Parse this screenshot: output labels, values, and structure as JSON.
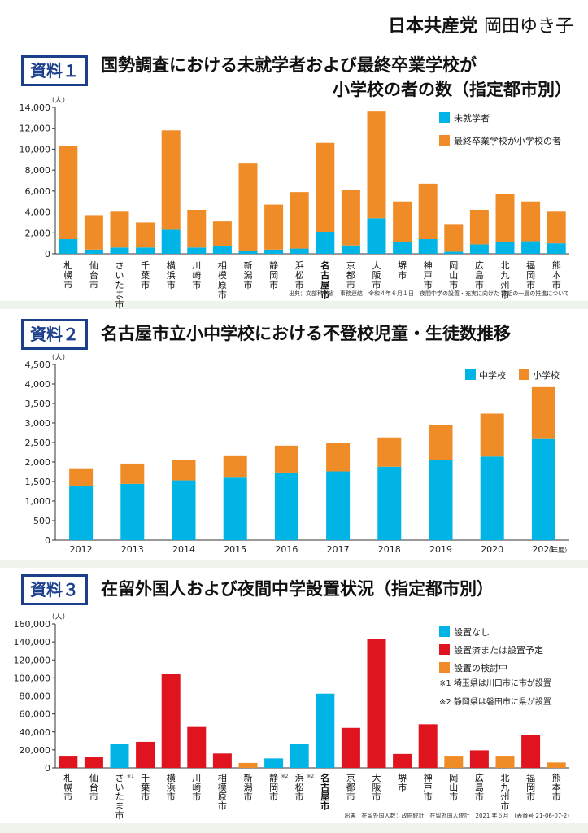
{
  "header": {
    "party": "日本共産党",
    "name": "岡田ゆき子"
  },
  "chart_data": [
    {
      "type": "bar",
      "badge": "資料１",
      "title_lines": [
        "国勢調査における未就学者および最終卒業学校が",
        "小学校の者の数（指定都市別）"
      ],
      "ylabel": "（人）",
      "ylim": [
        0,
        14000
      ],
      "yticks": [
        "0",
        "2,000",
        "4,000",
        "6,000",
        "8,000",
        "10,000",
        "12,000",
        "14,000"
      ],
      "categories": [
        "札幌市",
        "仙台市",
        "さいたま市",
        "千葉市",
        "横浜市",
        "川崎市",
        "相模原市",
        "新潟市",
        "静岡市",
        "浜松市",
        "名古屋市",
        "京都市",
        "大阪市",
        "堺市",
        "神戸市",
        "岡山市",
        "広島市",
        "北九州市",
        "福岡市",
        "熊本市"
      ],
      "highlight": "名古屋市",
      "series": [
        {
          "name": "未就学者",
          "color": "#00b4e6",
          "values": [
            1400,
            400,
            600,
            600,
            2300,
            600,
            700,
            300,
            400,
            500,
            2100,
            800,
            3400,
            1100,
            1400,
            200,
            900,
            1100,
            1200,
            1000
          ]
        },
        {
          "name": "最終卒業学校が小学校の者",
          "color": "#f08c28",
          "values": [
            8900,
            3300,
            3500,
            2400,
            9500,
            3600,
            2400,
            8400,
            4300,
            5400,
            8500,
            5300,
            10200,
            3900,
            5300,
            2650,
            3300,
            4600,
            3800,
            3100
          ]
        }
      ],
      "source": "出典：文部科学省　事務連絡　令和４年６月１日　夜間中学の設置・充実に向けた 取組の一層の推進について"
    },
    {
      "type": "bar",
      "badge": "資料２",
      "title_lines": [
        "名古屋市立小中学校における不登校児童・生徒数推移"
      ],
      "ylabel": "（人）",
      "ylim": [
        0,
        4500
      ],
      "yticks": [
        "0",
        "500",
        "1,000",
        "1,500",
        "2,000",
        "2,500",
        "3,000",
        "3,500",
        "4,000",
        "4,500"
      ],
      "categories": [
        "2012",
        "2013",
        "2014",
        "2015",
        "2016",
        "2017",
        "2018",
        "2019",
        "2020",
        "2021"
      ],
      "xunit": "（年度）",
      "series": [
        {
          "name": "中学校",
          "color": "#00b4e6",
          "values": [
            1390,
            1440,
            1530,
            1620,
            1730,
            1760,
            1880,
            2060,
            2140,
            2590
          ]
        },
        {
          "name": "小学校",
          "color": "#f08c28",
          "values": [
            450,
            520,
            520,
            550,
            690,
            730,
            750,
            890,
            1100,
            1330
          ]
        }
      ]
    },
    {
      "type": "bar",
      "badge": "資料３",
      "title_lines": [
        "在留外国人および夜間中学設置状況（指定都市別）"
      ],
      "ylabel": "（人）",
      "ylim": [
        0,
        160000
      ],
      "yticks": [
        "0",
        "20,000",
        "40,000",
        "60,000",
        "80,000",
        "100,000",
        "120,000",
        "140,000",
        "160,000"
      ],
      "categories": [
        "札幌市",
        "仙台市",
        "さいたま市",
        "千葉市",
        "横浜市",
        "川崎市",
        "相模原市",
        "新潟市",
        "静岡市",
        "浜松市",
        "名古屋市",
        "京都市",
        "大阪市",
        "堺市",
        "神戸市",
        "岡山市",
        "広島市",
        "北九州市",
        "福岡市",
        "熊本市"
      ],
      "highlight": "名古屋市",
      "category_marks": {
        "さいたま市": "※1",
        "静岡市": "※2",
        "浜松市": "※2"
      },
      "values": [
        13500,
        12500,
        27000,
        29000,
        104000,
        45500,
        16000,
        5500,
        10500,
        26500,
        82500,
        44500,
        143000,
        15500,
        48500,
        13500,
        19500,
        13500,
        36500,
        6000
      ],
      "status": [
        "設置済または設置予定",
        "設置済または設置予定",
        "設置なし",
        "設置済または設置予定",
        "設置済または設置予定",
        "設置済または設置予定",
        "設置済または設置予定",
        "設置の検討中",
        "設置なし",
        "設置なし",
        "設置なし",
        "設置済または設置予定",
        "設置済または設置予定",
        "設置済または設置予定",
        "設置済または設置予定",
        "設置の検討中",
        "設置済または設置予定",
        "設置の検討中",
        "設置済または設置予定",
        "設置の検討中"
      ],
      "legend": [
        {
          "name": "設置なし",
          "color": "#00b4e6"
        },
        {
          "name": "設置済または設置予定",
          "color": "#e0141e"
        },
        {
          "name": "設置の検討中",
          "color": "#f08c28"
        }
      ],
      "notes": [
        "※1 埼玉県は川口市に市が設置",
        "※2 静岡県は磐田市に県が設置"
      ],
      "source": "出典　在留外国人数：政府統計　在留外国人統計　2021 年６月　(表番号 21-06-07-2)"
    }
  ]
}
